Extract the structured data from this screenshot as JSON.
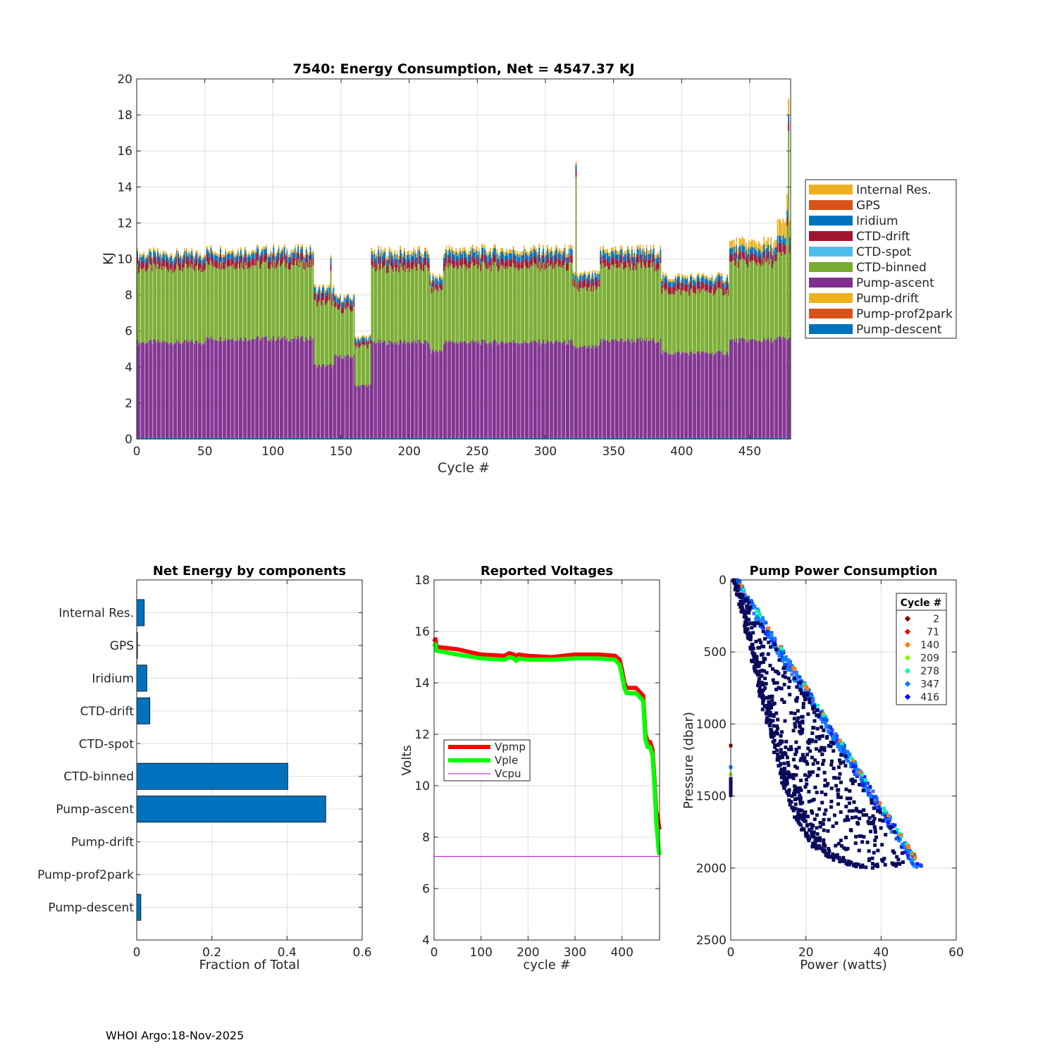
{
  "footer": "WHOI Argo:18-Nov-2025",
  "chart_data": [
    {
      "type": "bar",
      "stacked": true,
      "title": "7540: Energy Consumption,  Net = 4547.37 KJ",
      "xlabel": "Cycle #",
      "ylabel": "KJ",
      "xlim": [
        0,
        480
      ],
      "ylim": [
        0,
        20
      ],
      "xticks": [
        0,
        50,
        100,
        150,
        200,
        250,
        300,
        350,
        400,
        450
      ],
      "yticks": [
        0,
        2,
        4,
        6,
        8,
        10,
        12,
        14,
        16,
        18,
        20
      ],
      "grid": true,
      "legend_position": "right",
      "legend": [
        "Internal Res.",
        "GPS",
        "Iridium",
        "CTD-drift",
        "CTD-spot",
        "CTD-binned",
        "Pump-ascent",
        "Pump-drift",
        "Pump-prof2park",
        "Pump-descent"
      ],
      "colors": {
        "Internal Res.": "#EDB120",
        "GPS": "#D95319",
        "Iridium": "#0072BD",
        "CTD-drift": "#A2142F",
        "CTD-spot": "#4DBEEE",
        "CTD-binned": "#77AC30",
        "Pump-ascent": "#7E2F8E",
        "Pump-drift": "#EDB120",
        "Pump-prof2park": "#D95319",
        "Pump-descent": "#0072BD"
      },
      "stack_order_bottom_to_top": [
        "Pump-descent",
        "Pump-prof2park",
        "Pump-drift",
        "Pump-ascent",
        "CTD-binned",
        "CTD-spot",
        "CTD-drift",
        "Iridium",
        "GPS",
        "Internal Res."
      ],
      "segments": [
        {
          "from": 1,
          "to": 50,
          "Pump-ascent": 5.3,
          "CTD-binned": 4.1,
          "CTD-drift": 0.4,
          "Iridium": 0.3,
          "Internal Res.": 0.15
        },
        {
          "from": 51,
          "to": 130,
          "Pump-ascent": 5.5,
          "CTD-binned": 4.1,
          "CTD-drift": 0.4,
          "Iridium": 0.3,
          "Internal Res.": 0.15
        },
        {
          "from": 131,
          "to": 145,
          "Pump-ascent": 4.0,
          "CTD-binned": 3.5,
          "CTD-drift": 0.4,
          "Iridium": 0.3,
          "Internal Res.": 0.15
        },
        {
          "from": 146,
          "to": 160,
          "Pump-ascent": 4.5,
          "CTD-binned": 2.6,
          "CTD-drift": 0.3,
          "Iridium": 0.3,
          "Internal Res.": 0.1
        },
        {
          "from": 161,
          "to": 172,
          "Pump-ascent": 2.9,
          "CTD-binned": 2.2,
          "CTD-drift": 0.2,
          "Iridium": 0.2,
          "Internal Res.": 0.1
        },
        {
          "from": 173,
          "to": 215,
          "Pump-ascent": 5.3,
          "CTD-binned": 4.1,
          "CTD-drift": 0.4,
          "Iridium": 0.35,
          "Internal Res.": 0.2
        },
        {
          "from": 216,
          "to": 225,
          "Pump-ascent": 4.8,
          "CTD-binned": 3.4,
          "CTD-drift": 0.3,
          "Iridium": 0.3,
          "Internal Res.": 0.15
        },
        {
          "from": 226,
          "to": 320,
          "Pump-ascent": 5.3,
          "CTD-binned": 4.2,
          "CTD-drift": 0.4,
          "Iridium": 0.35,
          "Internal Res.": 0.2
        },
        {
          "from": 321,
          "to": 340,
          "Pump-ascent": 5.0,
          "CTD-binned": 3.2,
          "CTD-drift": 0.4,
          "Iridium": 0.3,
          "Internal Res.": 0.15
        },
        {
          "from": 341,
          "to": 385,
          "Pump-ascent": 5.4,
          "CTD-binned": 4.1,
          "CTD-drift": 0.4,
          "Iridium": 0.35,
          "Internal Res.": 0.2
        },
        {
          "from": 386,
          "to": 435,
          "Pump-ascent": 4.7,
          "CTD-binned": 3.4,
          "CTD-drift": 0.4,
          "Iridium": 0.3,
          "Internal Res.": 0.15
        },
        {
          "from": 436,
          "to": 470,
          "Pump-ascent": 5.4,
          "CTD-binned": 4.3,
          "CTD-drift": 0.4,
          "Iridium": 0.35,
          "Internal Res.": 0.4
        },
        {
          "from": 471,
          "to": 480,
          "Pump-ascent": 5.5,
          "CTD-binned": 4.6,
          "CTD-drift": 0.5,
          "Iridium": 0.4,
          "Internal Res.": 0.9
        }
      ],
      "spikes": [
        {
          "cycle": 323,
          "total": 15.4
        },
        {
          "cycle": 143,
          "total": 10.2
        },
        {
          "cycle": 479,
          "total": 18.9
        },
        {
          "cycle": 478,
          "total": 13.6
        }
      ]
    },
    {
      "type": "bar",
      "orientation": "horizontal",
      "title": "Net Energy by components",
      "xlabel": "Fraction of Total",
      "xlim": [
        0,
        0.6
      ],
      "xticks": [
        0,
        0.2,
        0.4,
        0.6
      ],
      "xtick_labels": [
        "0",
        "0.2",
        "0.4",
        "0.6"
      ],
      "grid": true,
      "categories": [
        "Internal Res.",
        "GPS",
        "Iridium",
        "CTD-drift",
        "CTD-spot",
        "CTD-binned",
        "Pump-ascent",
        "Pump-drift",
        "Pump-prof2park",
        "Pump-descent"
      ],
      "values": [
        0.02,
        0.002,
        0.027,
        0.035,
        0.0,
        0.402,
        0.503,
        0.0,
        0.0,
        0.011
      ],
      "color": "#0072BD"
    },
    {
      "type": "line",
      "title": "Reported Voltages",
      "xlabel": "cycle #",
      "ylabel": "Volts",
      "xlim": [
        0,
        480
      ],
      "ylim": [
        4,
        18
      ],
      "xticks": [
        0,
        100,
        200,
        300,
        400
      ],
      "yticks": [
        4,
        6,
        8,
        10,
        12,
        14,
        16,
        18
      ],
      "grid": true,
      "legend_position": "center-left",
      "series": [
        {
          "name": "Vpmp",
          "color": "#FF0000",
          "width": 6,
          "x": [
            0,
            3,
            5,
            50,
            100,
            150,
            160,
            170,
            175,
            180,
            200,
            250,
            300,
            350,
            385,
            395,
            400,
            405,
            410,
            430,
            440,
            445,
            450,
            455,
            460,
            465,
            470,
            473,
            476,
            478,
            480
          ],
          "y": [
            15.6,
            15.7,
            15.4,
            15.3,
            15.1,
            15.05,
            15.15,
            15.1,
            15.0,
            15.1,
            15.05,
            15.0,
            15.1,
            15.1,
            15.05,
            14.9,
            14.5,
            14.0,
            13.8,
            13.8,
            13.6,
            13.5,
            12.0,
            11.7,
            11.7,
            11.4,
            10.0,
            9.0,
            8.8,
            8.5,
            8.3
          ]
        },
        {
          "name": "Vple",
          "color": "#00FF00",
          "width": 6,
          "x": [
            0,
            3,
            5,
            50,
            100,
            150,
            160,
            170,
            175,
            180,
            200,
            250,
            300,
            350,
            385,
            395,
            400,
            405,
            410,
            430,
            440,
            445,
            450,
            455,
            460,
            465,
            470,
            473,
            476,
            478,
            480
          ],
          "y": [
            15.4,
            15.5,
            15.25,
            15.1,
            14.95,
            14.9,
            15.0,
            14.95,
            14.85,
            14.95,
            14.9,
            14.9,
            14.95,
            14.95,
            14.9,
            14.7,
            14.3,
            13.8,
            13.6,
            13.6,
            13.4,
            13.3,
            11.8,
            11.5,
            11.5,
            11.2,
            9.8,
            8.6,
            8.0,
            7.5,
            7.3
          ]
        },
        {
          "name": "Vcpu",
          "color": "#CC00CC",
          "width": 1,
          "x": [
            0,
            480
          ],
          "y": [
            7.25,
            7.25
          ]
        }
      ]
    },
    {
      "type": "scatter",
      "title": "Pump Power Consumption",
      "xlabel": "Power (watts)",
      "ylabel": "Pressure (dbar)",
      "xlim": [
        0,
        60
      ],
      "ylim": [
        0,
        2500
      ],
      "y_reversed": true,
      "xticks": [
        0,
        20,
        40,
        60
      ],
      "yticks": [
        0,
        500,
        1000,
        1500,
        2000,
        2500
      ],
      "ytick_labels": [
        "0",
        "500",
        "1000",
        "1500",
        "2000",
        "2500"
      ],
      "grid": true,
      "legend_position": "top-right",
      "legend_title": "Cycle #",
      "legend": [
        {
          "label": "2",
          "color": "#8B0000"
        },
        {
          "label": "71",
          "color": "#FF0000"
        },
        {
          "label": "140",
          "color": "#FF8000"
        },
        {
          "label": "209",
          "color": "#80FF00"
        },
        {
          "label": "278",
          "color": "#00FFAA"
        },
        {
          "label": "347",
          "color": "#0080FF"
        },
        {
          "label": "416",
          "color": "#0000FF"
        }
      ],
      "main_band": {
        "p0": [
          1,
          0
        ],
        "p1": [
          50,
          2000
        ]
      },
      "lower_curve": {
        "x": [
          1,
          3,
          5,
          8,
          11,
          14,
          17,
          22,
          28,
          35,
          41,
          45
        ],
        "y": [
          0,
          200,
          450,
          800,
          1100,
          1400,
          1650,
          1850,
          1950,
          2000,
          2005,
          2010
        ]
      },
      "axis_cluster": {
        "x": 0,
        "y_range": [
          1380,
          1500
        ],
        "extra_points": [
          [
            0,
            1150
          ],
          [
            0,
            1300
          ],
          [
            0,
            1350
          ]
        ]
      }
    }
  ]
}
